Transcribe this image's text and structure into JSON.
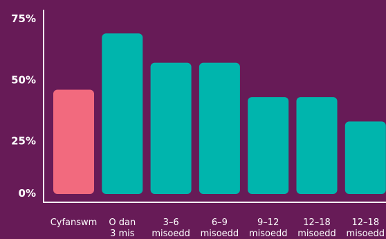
{
  "chart_data": {
    "type": "bar",
    "categories": [
      [
        "Cyfanswm"
      ],
      [
        "O dan",
        "3 mis"
      ],
      [
        "3–6",
        "misoedd"
      ],
      [
        "6–9",
        "misoedd"
      ],
      [
        "9–12",
        "misoedd"
      ],
      [
        "12–18",
        "misoedd"
      ],
      [
        "12–18",
        "misoedd"
      ]
    ],
    "values": [
      46,
      69,
      57,
      57,
      43,
      43,
      33
    ],
    "bar_colors": [
      "#f26a7e",
      "#00b5ad",
      "#00b5ad",
      "#00b5ad",
      "#00b5ad",
      "#00b5ad",
      "#00b5ad"
    ],
    "ylim": [
      0,
      75
    ],
    "yticks": [
      "0%",
      "25%",
      "50%",
      "75%"
    ],
    "ytick_values": [
      0,
      25,
      50,
      75
    ],
    "title": "",
    "xlabel": "",
    "ylabel": ""
  },
  "colors": {
    "background": "#671b57",
    "axis": "#ffffff",
    "text": "#ffffff"
  }
}
